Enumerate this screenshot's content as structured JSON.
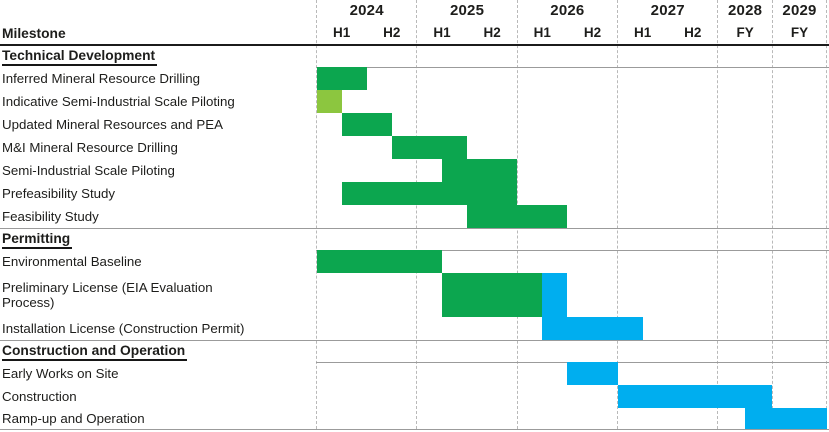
{
  "header": {
    "milestone_label": "Milestone"
  },
  "colors": {
    "green": "#0ca64f",
    "light_green": "#8cc63f",
    "blue": "#00aeef"
  },
  "chart_data": {
    "type": "gantt",
    "time_unit": "decimal_years",
    "x_axis": {
      "years": [
        {
          "label": "2024",
          "cols": [
            "H1",
            "H2"
          ]
        },
        {
          "label": "2025",
          "cols": [
            "H1",
            "H2"
          ]
        },
        {
          "label": "2026",
          "cols": [
            "H1",
            "H2"
          ]
        },
        {
          "label": "2027",
          "cols": [
            "H1",
            "H2"
          ]
        },
        {
          "label": "2028",
          "cols": [
            "FY"
          ]
        },
        {
          "label": "2029",
          "cols": [
            "FY"
          ]
        }
      ],
      "range": [
        2024,
        2030
      ],
      "gridlines": "dashed-vertical-at-year-boundaries"
    },
    "sections": [
      {
        "title": "Technical Development",
        "tasks": [
          {
            "name": "Inferred Mineral Resource Drilling",
            "bars": [
              {
                "color": "green",
                "start": 2024.0,
                "end": 2024.5
              }
            ]
          },
          {
            "name": "Indicative Semi-Industrial Scale Piloting",
            "bars": [
              {
                "color": "light_green",
                "start": 2024.0,
                "end": 2024.25
              }
            ]
          },
          {
            "name": "Updated Mineral Resources and PEA",
            "bars": [
              {
                "color": "green",
                "start": 2024.25,
                "end": 2024.75
              }
            ]
          },
          {
            "name": "M&I Mineral Resource Drilling",
            "bars": [
              {
                "color": "green",
                "start": 2024.75,
                "end": 2025.5
              }
            ]
          },
          {
            "name": "Semi-Industrial Scale Piloting",
            "bars": [
              {
                "color": "green",
                "start": 2025.25,
                "end": 2026.0
              }
            ]
          },
          {
            "name": "Prefeasibility Study",
            "bars": [
              {
                "color": "green",
                "start": 2024.25,
                "end": 2026.0
              }
            ]
          },
          {
            "name": "Feasibility Study",
            "bars": [
              {
                "color": "green",
                "start": 2025.5,
                "end": 2026.5
              }
            ]
          }
        ]
      },
      {
        "title": "Permitting",
        "tasks": [
          {
            "name": "Environmental Baseline",
            "bars": [
              {
                "color": "green",
                "start": 2024.0,
                "end": 2025.25
              }
            ]
          },
          {
            "name": "Preliminary License (EIA Evaluation Process)",
            "display_lines": [
              "Preliminary License (EIA Evaluation",
              "Process)"
            ],
            "bars": [
              {
                "color": "green",
                "start": 2025.25,
                "end": 2026.25
              },
              {
                "color": "blue",
                "start": 2026.25,
                "end": 2026.5
              }
            ]
          },
          {
            "name": "Installation License (Construction Permit)",
            "bars": [
              {
                "color": "blue",
                "start": 2026.25,
                "end": 2027.25
              }
            ]
          }
        ]
      },
      {
        "title": "Construction and Operation",
        "tasks": [
          {
            "name": "Early Works on Site",
            "bars": [
              {
                "color": "blue",
                "start": 2026.5,
                "end": 2027.0
              }
            ]
          },
          {
            "name": "Construction",
            "bars": [
              {
                "color": "blue",
                "start": 2027.0,
                "end": 2029.0
              }
            ]
          },
          {
            "name": "Ramp-up and Operation",
            "bars": [
              {
                "color": "blue",
                "start": 2028.5,
                "end": 2030.0
              }
            ]
          }
        ]
      }
    ]
  }
}
